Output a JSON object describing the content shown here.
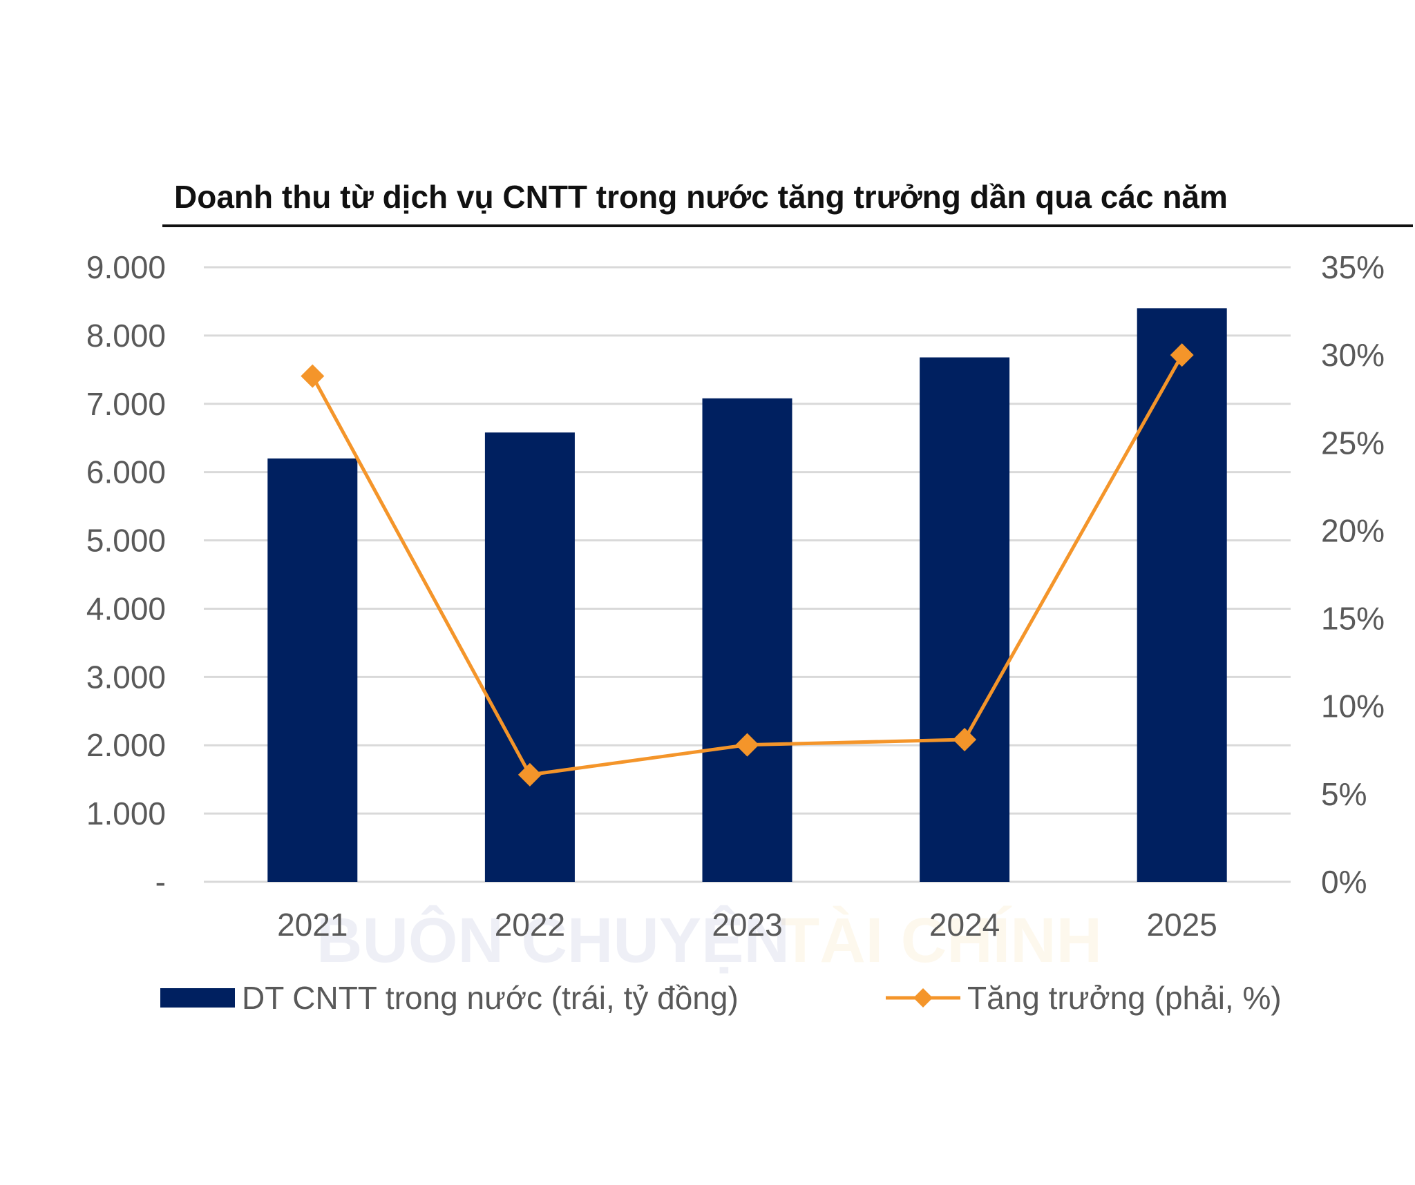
{
  "chart_data": {
    "type": "bar",
    "title": "Doanh thu từ dịch vụ CNTT trong nước tăng trưởng dần qua các năm",
    "categories": [
      "2021",
      "2022",
      "2023",
      "2024",
      "2025"
    ],
    "series": [
      {
        "name": "DT CNTT trong nước (trái, tỷ đồng)",
        "type": "bar",
        "axis": "left",
        "values": [
          6200,
          6580,
          7080,
          7680,
          8400
        ]
      },
      {
        "name": "Tăng trưởng (phải, %)",
        "type": "line",
        "axis": "right",
        "values": [
          28.8,
          6.1,
          7.8,
          8.1,
          30.0
        ]
      }
    ],
    "y_left": {
      "ylim": [
        0,
        9000
      ],
      "tick_values": [
        0,
        1000,
        2000,
        3000,
        4000,
        5000,
        6000,
        7000,
        8000,
        9000
      ],
      "tick_labels": [
        "-",
        "1.000",
        "2.000",
        "3.000",
        "4.000",
        "5.000",
        "6.000",
        "7.000",
        "8.000",
        "9.000"
      ]
    },
    "y_right": {
      "ylim": [
        0,
        35
      ],
      "tick_values": [
        0,
        5,
        10,
        15,
        20,
        25,
        30,
        35
      ],
      "tick_labels": [
        "0%",
        "5%",
        "10%",
        "15%",
        "20%",
        "25%",
        "30%",
        "35%"
      ]
    },
    "grid": true,
    "legend_position": "bottom",
    "colors": {
      "bar": "#002060",
      "line": "#F4952A",
      "grid": "#D9D9D9",
      "axis_text": "#595959"
    }
  },
  "watermark": {
    "left": "BUÔN CHUYỆN",
    "right": "TÀI CHÍNH"
  }
}
